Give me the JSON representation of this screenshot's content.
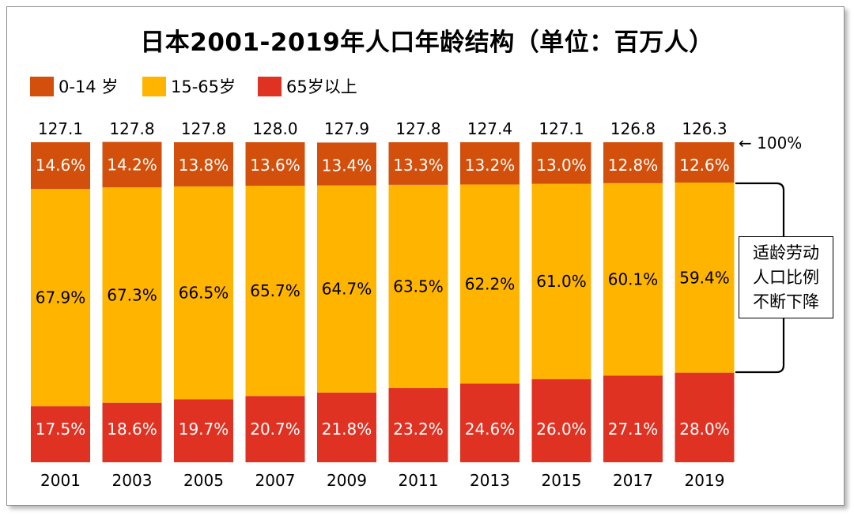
{
  "chart_data": {
    "type": "bar",
    "stacked": "100%",
    "title": "日本2001-2019年人口年龄结构（单位：百万人）",
    "categories": [
      "2001",
      "2003",
      "2005",
      "2007",
      "2009",
      "2011",
      "2013",
      "2015",
      "2017",
      "2019"
    ],
    "totals": [
      "127.1",
      "127.8",
      "127.8",
      "128.0",
      "127.9",
      "127.8",
      "127.4",
      "127.1",
      "126.8",
      "126.3"
    ],
    "series": [
      {
        "name": "65岁以上",
        "color": "#E03222",
        "values": [
          17.5,
          18.6,
          19.7,
          20.7,
          21.8,
          23.2,
          24.6,
          26.0,
          27.1,
          28.0
        ],
        "labels": [
          "17.5%",
          "18.6%",
          "19.7%",
          "20.7%",
          "21.8%",
          "23.2%",
          "24.6%",
          "26.0%",
          "27.1%",
          "28.0%"
        ]
      },
      {
        "name": "15-65岁",
        "color": "#FFB400",
        "values": [
          67.9,
          67.3,
          66.5,
          65.7,
          64.7,
          63.5,
          62.2,
          61.0,
          60.1,
          59.4
        ],
        "labels": [
          "67.9%",
          "67.3%",
          "66.5%",
          "65.7%",
          "64.7%",
          "63.5%",
          "62.2%",
          "61.0%",
          "60.1%",
          "59.4%"
        ]
      },
      {
        "name": "0-14 岁",
        "color": "#D2500C",
        "values": [
          14.6,
          14.2,
          13.8,
          13.6,
          13.4,
          13.3,
          13.2,
          13.0,
          12.8,
          12.6
        ],
        "labels": [
          "14.6%",
          "14.2%",
          "13.8%",
          "13.6%",
          "13.4%",
          "13.3%",
          "13.2%",
          "13.0%",
          "12.8%",
          "12.6%"
        ]
      }
    ],
    "legend_order": [
      "0-14 岁",
      "15-65岁",
      "65岁以上"
    ],
    "legend_position": "top-left",
    "annotations": {
      "top_marker": "← 100%",
      "callout": [
        "适龄劳动",
        "人口比例",
        "不断下降"
      ]
    },
    "grid": false
  }
}
